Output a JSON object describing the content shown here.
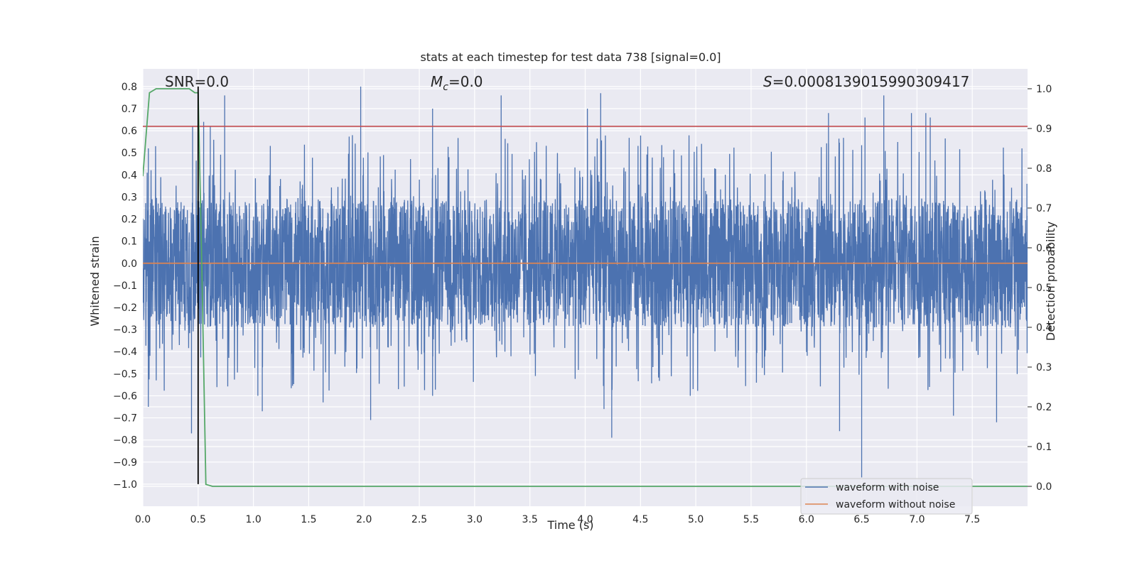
{
  "chart_data": {
    "type": "line",
    "title": "stats at each timestep for test data 738 [signal=0.0]",
    "xlabel": "Time (s)",
    "ylabel": "Whitened strain",
    "y2label": "Detection probability",
    "xlim": [
      0.0,
      8.0
    ],
    "ylim": [
      -1.1,
      0.88
    ],
    "y2lim": [
      -0.05,
      1.05
    ],
    "xticks": [
      "0.0",
      "0.5",
      "1.0",
      "1.5",
      "2.0",
      "2.5",
      "3.0",
      "3.5",
      "4.0",
      "4.5",
      "5.0",
      "5.5",
      "6.0",
      "6.5",
      "7.0",
      "7.5"
    ],
    "yticks": [
      "0.8",
      "0.7",
      "0.6",
      "0.5",
      "0.4",
      "0.3",
      "0.2",
      "0.1",
      "0.0",
      "−0.1",
      "−0.2",
      "−0.3",
      "−0.4",
      "−0.5",
      "−0.6",
      "−0.7",
      "−0.8",
      "−0.9",
      "−1.0"
    ],
    "y2ticks": [
      "1.0",
      "0.9",
      "0.8",
      "0.7",
      "0.6",
      "0.5",
      "0.4",
      "0.3",
      "0.2",
      "0.1",
      "0.0"
    ],
    "grid": true,
    "legend": {
      "position": "lower-right",
      "entries": [
        "waveform with noise",
        "waveform without noise"
      ]
    },
    "annotations": {
      "snr": "SNR=0.0",
      "mc_symbol": "M",
      "mc_sub": "c",
      "mc_value": "=0.0",
      "s_symbol": "S",
      "s_value": "=0.0008139015990309417"
    },
    "series": [
      {
        "name": "waveform with noise",
        "axis": "left",
        "color": "#4c72b0",
        "style": "noise",
        "band_amplitude": 0.29,
        "spike_peaks_pos": [
          [
            0.05,
            0.52
          ],
          [
            0.45,
            0.62
          ],
          [
            0.5,
            0.6
          ],
          [
            0.55,
            0.64
          ],
          [
            0.61,
            0.62
          ],
          [
            0.74,
            0.76
          ],
          [
            1.97,
            0.8
          ],
          [
            2.62,
            0.7
          ],
          [
            3.24,
            0.76
          ],
          [
            4.02,
            0.7
          ],
          [
            4.14,
            0.77
          ],
          [
            6.2,
            0.68
          ],
          [
            6.53,
            0.66
          ],
          [
            6.7,
            0.76
          ],
          [
            6.95,
            0.68
          ],
          [
            7.08,
            0.68
          ],
          [
            7.12,
            0.66
          ]
        ],
        "spike_peaks_neg": [
          [
            0.05,
            -0.65
          ],
          [
            0.44,
            -0.77
          ],
          [
            0.5,
            -0.46
          ],
          [
            1.04,
            -0.6
          ],
          [
            1.08,
            -0.67
          ],
          [
            1.63,
            -0.63
          ],
          [
            2.06,
            -0.71
          ],
          [
            2.62,
            -0.6
          ],
          [
            4.17,
            -0.66
          ],
          [
            4.24,
            -0.79
          ],
          [
            4.95,
            -0.6
          ],
          [
            6.3,
            -0.76
          ],
          [
            6.5,
            -0.97
          ],
          [
            7.33,
            -0.69
          ],
          [
            7.72,
            -0.72
          ]
        ]
      },
      {
        "name": "waveform without noise",
        "axis": "left",
        "color": "#dd8452",
        "x": [
          0.0,
          8.0
        ],
        "y": [
          0.0,
          0.0
        ]
      },
      {
        "name": "",
        "axis": "right",
        "color": "#55a868",
        "x": [
          0.0,
          0.06,
          0.12,
          0.2,
          0.3,
          0.42,
          0.47,
          0.5,
          0.53,
          0.57,
          0.63,
          0.7,
          8.0
        ],
        "y": [
          0.78,
          0.99,
          1.0,
          1.0,
          1.0,
          1.0,
          0.99,
          0.99,
          0.6,
          0.005,
          0.0,
          0.0,
          0.0
        ]
      }
    ],
    "hlines": [
      {
        "axis": "left",
        "y": 0.62,
        "color": "#c44e52"
      }
    ],
    "vlines": [
      {
        "x": 0.5,
        "y_from": -1.0,
        "y_to": 0.8,
        "color": "#000000"
      }
    ]
  }
}
